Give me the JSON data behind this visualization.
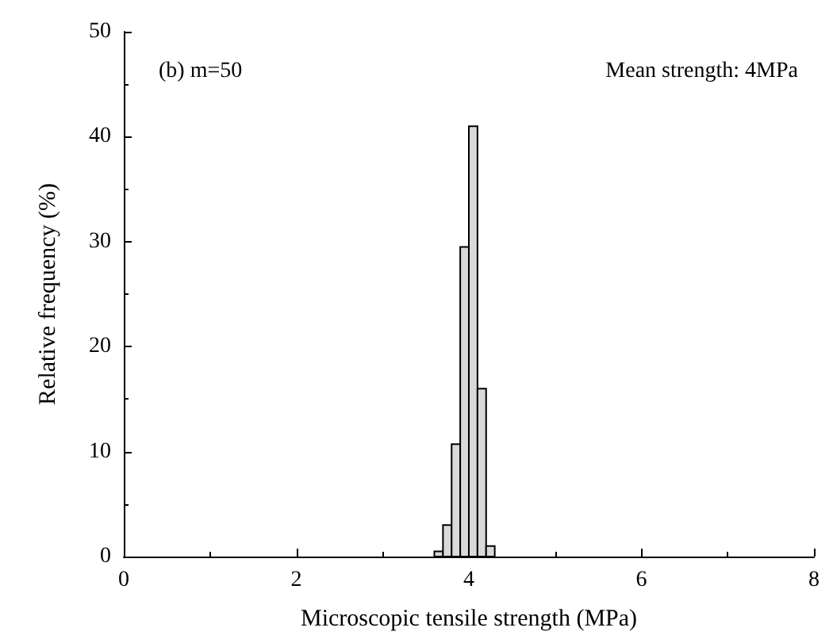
{
  "chart_data": {
    "type": "histogram",
    "xlabel": "Microscopic tensile strength (MPa)",
    "ylabel": "Relative frequency (%)",
    "annotations": [
      "(b) m=50",
      "Mean strength: 4MPa"
    ],
    "bins": [
      3.6,
      3.7,
      3.8,
      3.9,
      4.0,
      4.1,
      4.2,
      4.3
    ],
    "values": [
      0.5,
      3,
      10.7,
      29.5,
      41,
      16,
      1
    ],
    "color": "#d9d9d9",
    "xlim": [
      0,
      8
    ],
    "xticks": [
      0,
      2,
      4,
      6,
      8
    ],
    "ylim": [
      0,
      50
    ],
    "yticks": [
      0,
      10,
      20,
      30,
      40,
      50
    ],
    "grid": false
  }
}
